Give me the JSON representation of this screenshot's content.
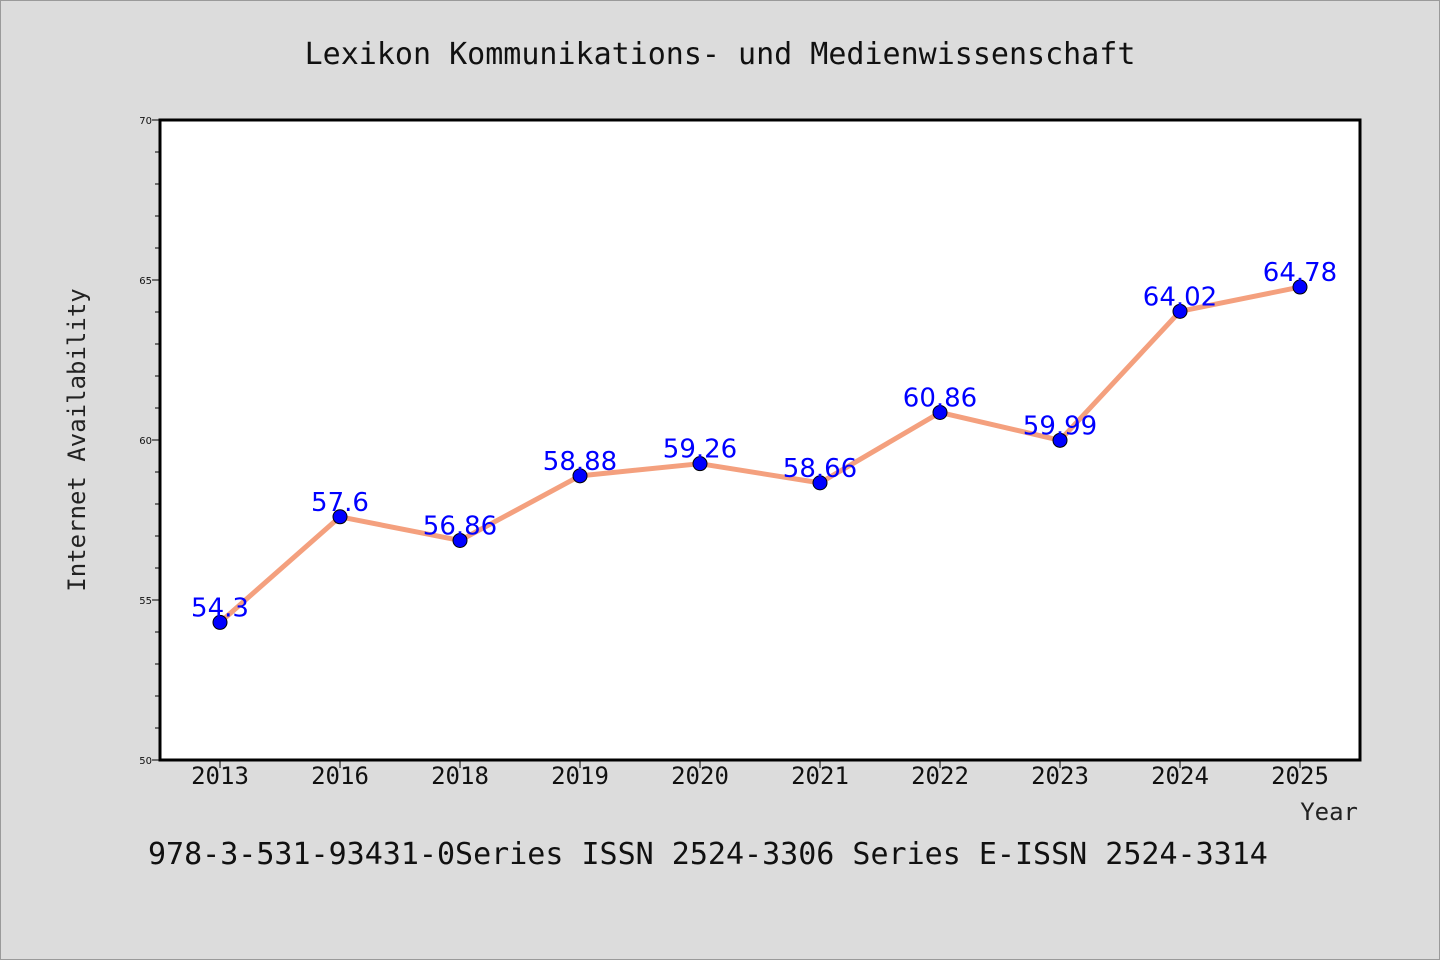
{
  "chart_data": {
    "type": "line",
    "title": "Lexikon Kommunikations- und Medienwissenschaft",
    "xlabel": "Year",
    "ylabel": "Internet Availability",
    "categories": [
      "2013",
      "2016",
      "2018",
      "2019",
      "2020",
      "2021",
      "2022",
      "2023",
      "2024",
      "2025"
    ],
    "series": [
      {
        "values": [
          54.3,
          57.6,
          56.86,
          58.88,
          59.26,
          58.66,
          60.86,
          59.99,
          64.02,
          64.78
        ],
        "labels": [
          "54.3",
          "57.6",
          "56.86",
          "58.88",
          "59.26",
          "58.66",
          "60.86",
          "59.99",
          "64.02",
          "64.78"
        ],
        "line_color": "#f4a07e",
        "marker_color": "#0000ff"
      }
    ],
    "ylim": [
      50,
      70
    ],
    "yticks": [
      "50",
      "55",
      "60",
      "65",
      "70"
    ],
    "grid": false,
    "legend": "none",
    "data_label_color": "#0000ff"
  },
  "footer": "978-3-531-93431-0Series ISSN 2524-3306 Series E-ISSN 2524-3314"
}
